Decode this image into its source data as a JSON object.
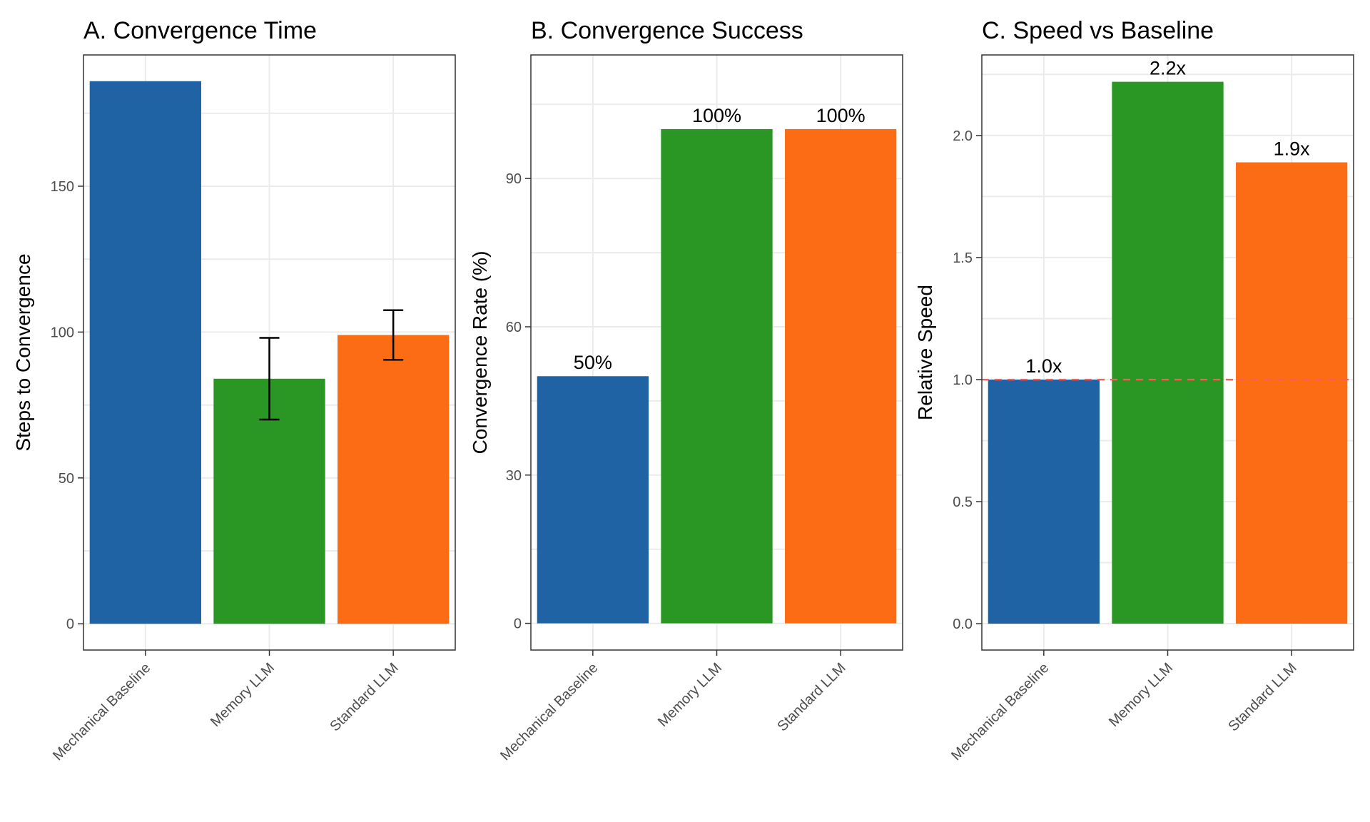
{
  "colors": {
    "Mechanical Baseline": "#1f63a5",
    "Memory LLM": "#2a9623",
    "Standard LLM": "#fc6c14",
    "reference_line": "#ff5a5a"
  },
  "chart_data": [
    {
      "type": "bar",
      "title": "A. Convergence Time",
      "ylabel": "Steps to Convergence",
      "xlabel": "",
      "categories": [
        "Mechanical Baseline",
        "Memory LLM",
        "Standard LLM"
      ],
      "values": [
        186,
        84,
        99
      ],
      "error_low": [
        null,
        70,
        90.5
      ],
      "error_high": [
        null,
        98,
        107.5
      ],
      "ylim": [
        -9,
        195
      ],
      "yticks": [
        0,
        50,
        100,
        150
      ],
      "ytick_labels": [
        "0",
        "50",
        "100",
        "150"
      ],
      "data_labels": [],
      "grid": true
    },
    {
      "type": "bar",
      "title": "B. Convergence Success",
      "ylabel": "Convergence Rate (%)",
      "xlabel": "",
      "categories": [
        "Mechanical Baseline",
        "Memory LLM",
        "Standard LLM"
      ],
      "values": [
        50,
        100,
        100
      ],
      "ylim": [
        -5.4,
        115
      ],
      "yticks": [
        0,
        30,
        60,
        90
      ],
      "ytick_labels": [
        "0",
        "30",
        "60",
        "90"
      ],
      "data_labels": [
        "50%",
        "100%",
        "100%"
      ],
      "grid": true
    },
    {
      "type": "bar",
      "title": "C. Speed vs Baseline",
      "ylabel": "Relative Speed",
      "xlabel": "",
      "categories": [
        "Mechanical Baseline",
        "Memory LLM",
        "Standard LLM"
      ],
      "values": [
        1.0,
        2.22,
        1.89
      ],
      "ylim": [
        -0.108,
        2.33
      ],
      "yticks": [
        0,
        0.5,
        1.0,
        1.5,
        2.0
      ],
      "ytick_labels": [
        "0.0",
        "0.5",
        "1.0",
        "1.5",
        "2.0"
      ],
      "data_labels": [
        "1.0x",
        "2.2x",
        "1.9x"
      ],
      "reference_line": 1.0,
      "grid": true
    }
  ]
}
